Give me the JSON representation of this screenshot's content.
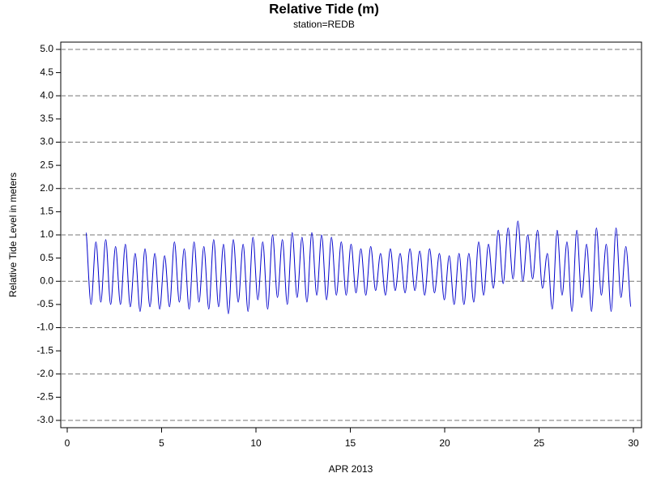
{
  "chart_data": {
    "type": "line",
    "title": "Relative Tide (m)",
    "subtitle": "station=REDB",
    "x_label": "APR 2013",
    "y_label": "Relative Tide Level in meters",
    "xlim": [
      0,
      30
    ],
    "xticks": [
      0,
      5,
      10,
      15,
      20,
      25,
      30
    ],
    "ylim": [
      -3,
      5
    ],
    "yticks": [
      {
        "value": -3,
        "label": "-3.0"
      },
      -2.5,
      {
        "value": -2,
        "label": "-2.0"
      },
      -1.5,
      {
        "value": -1,
        "label": "-1.0"
      },
      -0.5,
      {
        "value": 0,
        "label": "0.0"
      },
      0.5,
      {
        "value": 1,
        "label": "1.0"
      },
      1.5,
      {
        "value": 2,
        "label": "2.0"
      },
      2.5,
      {
        "value": 3,
        "label": "3.0"
      },
      3.5,
      {
        "value": 4,
        "label": "4.0"
      },
      4.5,
      {
        "value": 5,
        "label": "5.0"
      }
    ],
    "grid": true,
    "x": [
      1,
      1.26,
      1.52,
      1.78,
      2.04,
      2.3,
      2.56,
      2.82,
      3.08,
      3.34,
      3.6,
      3.86,
      4.12,
      4.38,
      4.64,
      4.9,
      5.16,
      5.42,
      5.68,
      5.94,
      6.2,
      6.46,
      6.72,
      6.98,
      7.24,
      7.5,
      7.76,
      8.02,
      8.28,
      8.54,
      8.8,
      9.06,
      9.32,
      9.58,
      9.84,
      10.1,
      10.36,
      10.62,
      10.88,
      11.14,
      11.4,
      11.66,
      11.92,
      12.18,
      12.44,
      12.7,
      12.96,
      13.22,
      13.48,
      13.74,
      14,
      14.26,
      14.52,
      14.78,
      15.04,
      15.3,
      15.56,
      15.82,
      16.08,
      16.34,
      16.6,
      16.86,
      17.12,
      17.38,
      17.64,
      17.9,
      18.16,
      18.42,
      18.68,
      18.94,
      19.2,
      19.46,
      19.72,
      19.98,
      20.24,
      20.5,
      20.76,
      21.02,
      21.28,
      21.54,
      21.8,
      22.06,
      22.32,
      22.58,
      22.84,
      23.1,
      23.36,
      23.62,
      23.88,
      24.14,
      24.4,
      24.66,
      24.92,
      25.18,
      25.44,
      25.7,
      25.96,
      26.22,
      26.48,
      26.74,
      27,
      27.26,
      27.52,
      27.78,
      28.04,
      28.3,
      28.56,
      28.82,
      29.08,
      29.34,
      29.6,
      29.86
    ],
    "series": [
      {
        "color": "#0000cc",
        "values": [
          1.05,
          -0.5,
          0.85,
          -0.45,
          0.9,
          -0.5,
          0.75,
          -0.5,
          0.8,
          -0.55,
          0.6,
          -0.65,
          0.7,
          -0.55,
          0.6,
          -0.6,
          0.55,
          -0.55,
          0.85,
          -0.45,
          0.7,
          -0.6,
          0.85,
          -0.45,
          0.75,
          -0.6,
          0.9,
          -0.55,
          0.8,
          -0.7,
          0.9,
          -0.45,
          0.8,
          -0.65,
          0.95,
          -0.4,
          0.85,
          -0.6,
          1.0,
          -0.35,
          0.9,
          -0.5,
          1.05,
          -0.35,
          0.95,
          -0.45,
          1.05,
          -0.3,
          1.0,
          -0.4,
          0.95,
          -0.3,
          0.85,
          -0.3,
          0.8,
          -0.25,
          0.7,
          -0.3,
          0.75,
          -0.2,
          0.6,
          -0.3,
          0.7,
          -0.2,
          0.6,
          -0.25,
          0.7,
          -0.2,
          0.65,
          -0.3,
          0.7,
          -0.25,
          0.6,
          -0.4,
          0.55,
          -0.5,
          0.6,
          -0.5,
          0.6,
          -0.45,
          0.85,
          -0.3,
          0.8,
          -0.15,
          1.1,
          -0.05,
          1.15,
          0.05,
          1.3,
          0.0,
          1.0,
          0.05,
          1.1,
          -0.15,
          0.6,
          -0.6,
          1.1,
          -0.3,
          0.85,
          -0.65,
          1.1,
          -0.35,
          0.8,
          -0.65,
          1.15,
          -0.3,
          0.8,
          -0.65,
          1.15,
          -0.35,
          0.75,
          -0.55
        ]
      }
    ]
  }
}
